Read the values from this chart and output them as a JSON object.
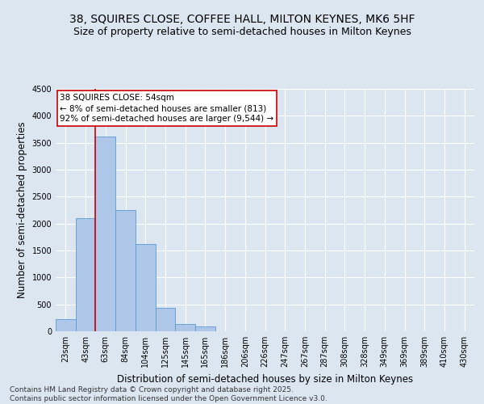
{
  "title": "38, SQUIRES CLOSE, COFFEE HALL, MILTON KEYNES, MK6 5HF",
  "subtitle": "Size of property relative to semi-detached houses in Milton Keynes",
  "xlabel": "Distribution of semi-detached houses by size in Milton Keynes",
  "ylabel": "Number of semi-detached properties",
  "categories": [
    "23sqm",
    "43sqm",
    "63sqm",
    "84sqm",
    "104sqm",
    "125sqm",
    "145sqm",
    "165sqm",
    "186sqm",
    "206sqm",
    "226sqm",
    "247sqm",
    "267sqm",
    "287sqm",
    "308sqm",
    "328sqm",
    "349sqm",
    "369sqm",
    "389sqm",
    "410sqm",
    "430sqm"
  ],
  "values": [
    220,
    2100,
    3620,
    2250,
    1620,
    440,
    140,
    90,
    0,
    0,
    0,
    0,
    0,
    0,
    0,
    0,
    0,
    0,
    0,
    0,
    0
  ],
  "bar_color": "#aec6e8",
  "bar_edge_color": "#5b9bd5",
  "vline_color": "#cc0000",
  "annotation_title": "38 SQUIRES CLOSE: 54sqm",
  "annotation_line1": "← 8% of semi-detached houses are smaller (813)",
  "annotation_line2": "92% of semi-detached houses are larger (9,544) →",
  "annotation_box_color": "#cc0000",
  "ylim": [
    0,
    4500
  ],
  "yticks": [
    0,
    500,
    1000,
    1500,
    2000,
    2500,
    3000,
    3500,
    4000,
    4500
  ],
  "footnote": "Contains HM Land Registry data © Crown copyright and database right 2025.\nContains public sector information licensed under the Open Government Licence v3.0.",
  "bg_color": "#dce6f1",
  "plot_bg_color": "#dce6f1",
  "grid_color": "#ffffff",
  "title_fontsize": 10,
  "subtitle_fontsize": 9,
  "axis_label_fontsize": 8.5,
  "tick_fontsize": 7,
  "footnote_fontsize": 6.5,
  "ann_fontsize": 7.5
}
